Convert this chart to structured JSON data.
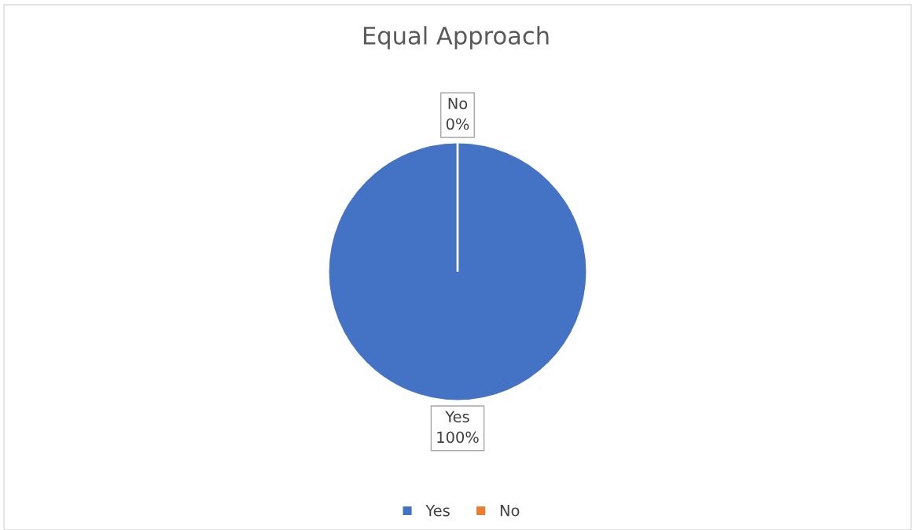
{
  "chart_data": {
    "type": "pie",
    "title": "Equal Approach",
    "categories": [
      "Yes",
      "No"
    ],
    "values": [
      100,
      0
    ],
    "colors": [
      "#4472c4",
      "#ed7d31"
    ],
    "value_labels": [
      "100%",
      "0%"
    ],
    "legend": "bottom"
  }
}
